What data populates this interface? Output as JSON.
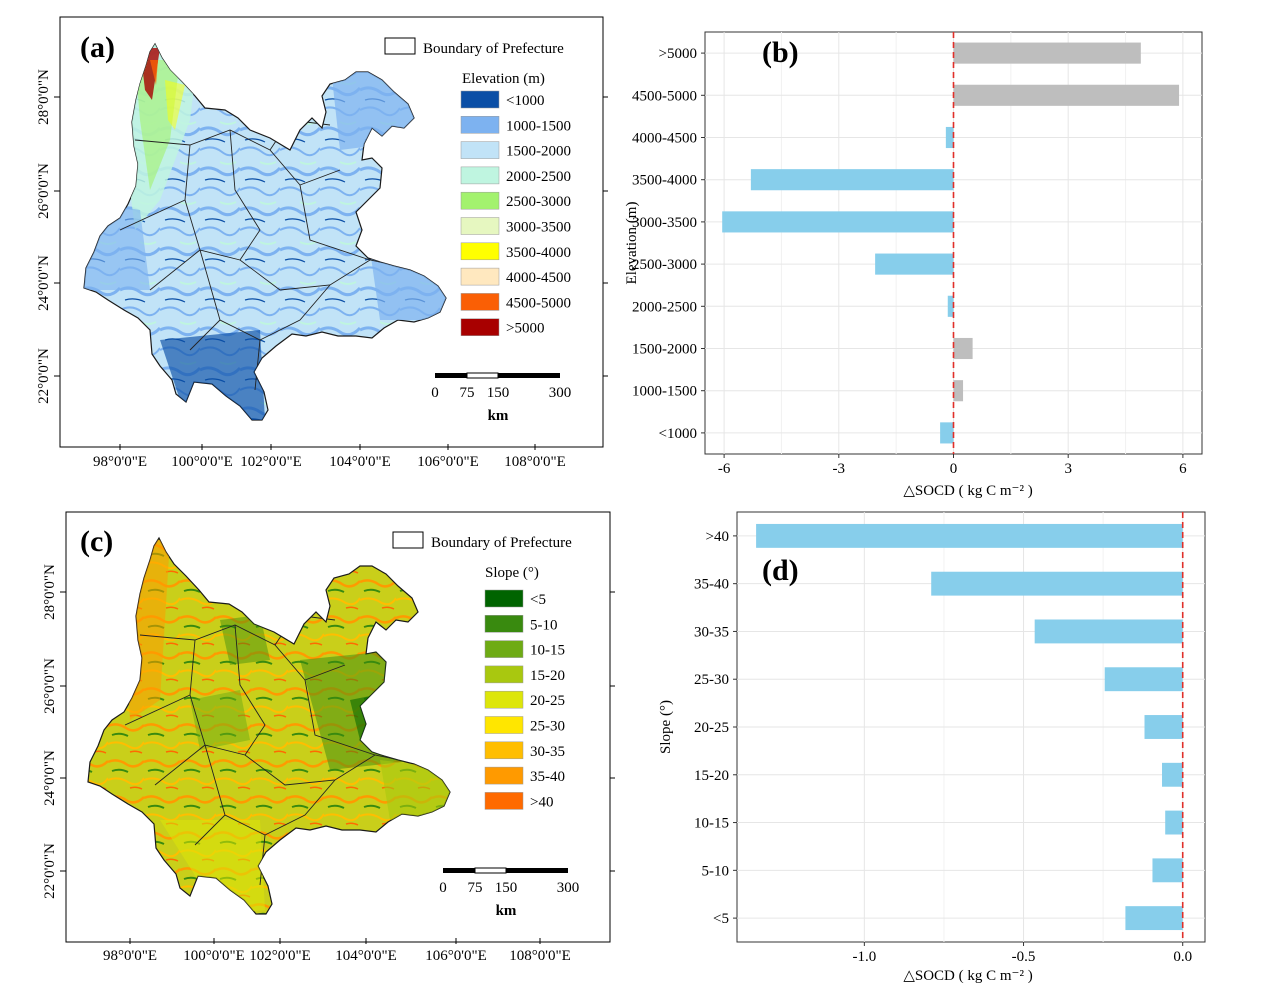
{
  "figure": {
    "panel_a": {
      "letter": "(a)",
      "boundary_label": "Boundary of Prefecture",
      "legend_title": "Elevation (m)",
      "legend": [
        {
          "label": "<1000",
          "color": "#0b4fa6"
        },
        {
          "label": "1000-1500",
          "color": "#7db2f0"
        },
        {
          "label": "1500-2000",
          "color": "#c1e3f7"
        },
        {
          "label": "2000-2500",
          "color": "#bff5e0"
        },
        {
          "label": "2500-3000",
          "color": "#a3f26e"
        },
        {
          "label": "3000-3500",
          "color": "#e6f7c0"
        },
        {
          "label": "3500-4000",
          "color": "#ffff00"
        },
        {
          "label": "4000-4500",
          "color": "#ffe8bf"
        },
        {
          "label": "4500-5000",
          "color": "#fa5f05"
        },
        {
          "label": ">5000",
          "color": "#a80000"
        }
      ],
      "scalebar": {
        "ticks": [
          "0",
          "75",
          "150",
          "300"
        ],
        "unit": "km"
      },
      "lon_labels": [
        "98°0'0\"E",
        "100°0'0\"E",
        "102°0'0\"E",
        "104°0'0\"E",
        "106°0'0\"E",
        "108°0'0\"E"
      ],
      "lat_labels": [
        "28°0'0\"N",
        "26°0'0\"N",
        "24°0'0\"N",
        "22°0'0\"N"
      ]
    },
    "panel_c": {
      "letter": "(c)",
      "boundary_label": "Boundary of Prefecture",
      "legend_title": "Slope (°)",
      "legend": [
        {
          "label": "<5",
          "color": "#006400"
        },
        {
          "label": "5-10",
          "color": "#398a0f"
        },
        {
          "label": "10-15",
          "color": "#6eab14"
        },
        {
          "label": "15-20",
          "color": "#a9c80f"
        },
        {
          "label": "20-25",
          "color": "#dde60a"
        },
        {
          "label": "25-30",
          "color": "#ffe600"
        },
        {
          "label": "30-35",
          "color": "#ffbe00"
        },
        {
          "label": "35-40",
          "color": "#ff9a00"
        },
        {
          "label": ">40",
          "color": "#ff6a00"
        }
      ],
      "scalebar": {
        "ticks": [
          "0",
          "75",
          "150",
          "300"
        ],
        "unit": "km"
      },
      "lon_labels": [
        "98°0'0\"E",
        "100°0'0\"E",
        "102°0'0\"E",
        "104°0'0\"E",
        "106°0'0\"E",
        "108°0'0\"E"
      ],
      "lat_labels": [
        "28°0'0\"N",
        "26°0'0\"N",
        "24°0'0\"N",
        "22°0'0\"N"
      ]
    }
  },
  "chart_data": [
    {
      "panel": "(b)",
      "type": "bar",
      "orientation": "horizontal",
      "categories": [
        "<1000",
        "1000-1500",
        "1500-2000",
        "2000-2500",
        "2500-3000",
        "3000-3500",
        "3500-4000",
        "4000-4500",
        "4500-5000",
        ">5000"
      ],
      "values": [
        -0.35,
        0.25,
        0.5,
        -0.15,
        -2.05,
        -6.05,
        -5.3,
        -0.2,
        5.9,
        4.9
      ],
      "colors": {
        "negative": "#87ceeb",
        "positive": "#bebebe"
      },
      "xlabel": "△SOCD ( kg C m⁻² )",
      "ylabel": "Elevation (m)",
      "xticks": [
        "-6",
        "-3",
        "0",
        "3",
        "6"
      ],
      "xlim": [
        -6.5,
        6.5
      ],
      "grid": true,
      "reference_line": 0
    },
    {
      "panel": "(d)",
      "type": "bar",
      "orientation": "horizontal",
      "categories": [
        "<5",
        "5-10",
        "10-15",
        "15-20",
        "20-25",
        "25-30",
        "30-35",
        "35-40",
        ">40"
      ],
      "values": [
        -0.18,
        -0.095,
        -0.055,
        -0.065,
        -0.12,
        -0.245,
        -0.465,
        -0.79,
        -1.34
      ],
      "colors": {
        "negative": "#87ceeb",
        "positive": "#bebebe"
      },
      "xlabel": "△SOCD ( kg C m⁻² )",
      "ylabel": "Slope (°)",
      "xticks": [
        "-1.0",
        "-0.5",
        "0.0"
      ],
      "xlim": [
        -1.4,
        0.07
      ],
      "grid": true,
      "reference_line": 0
    }
  ]
}
